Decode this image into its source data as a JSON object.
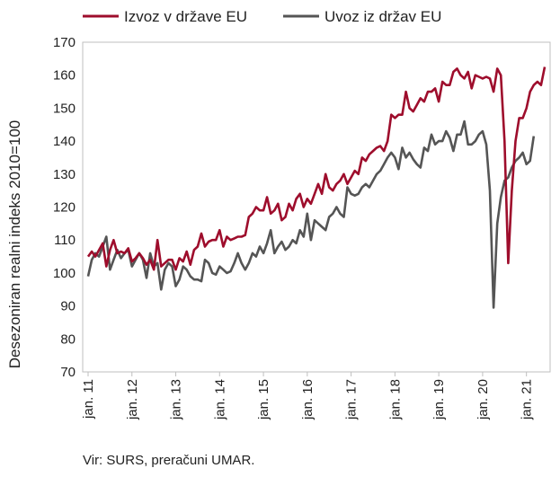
{
  "chart_data": {
    "type": "line",
    "ylabel": "Desezoniran realni indeks 2010=100",
    "ylim": [
      70,
      170
    ],
    "yticks": [
      70,
      80,
      90,
      100,
      110,
      120,
      130,
      140,
      150,
      160,
      170
    ],
    "xticks": [
      "jan. 11",
      "jan. 12",
      "jan. 13",
      "jan. 14",
      "jan. 15",
      "jan. 16",
      "jan. 17",
      "jan. 18",
      "jan. 19",
      "jan. 20",
      "jan. 21"
    ],
    "grid": false,
    "legend_position": "top",
    "start": "2011-01",
    "series": [
      {
        "name": "Izvoz v države EU",
        "color": "#9e0d2c",
        "values": [
          105,
          106.5,
          105,
          107,
          109,
          102,
          107,
          110,
          106,
          106.5,
          106,
          107.5,
          103.5,
          104.5,
          106,
          104.5,
          102.5,
          104,
          101,
          110,
          102,
          103,
          104,
          104,
          101,
          104.5,
          103.5,
          106.5,
          102.5,
          107,
          108,
          112,
          108,
          109.5,
          110,
          110,
          113,
          108,
          111,
          110,
          110.5,
          111,
          111,
          111.5,
          117,
          118,
          120,
          119,
          119,
          123,
          118,
          119,
          121,
          116,
          117,
          121,
          119,
          122.5,
          124,
          120,
          122.5,
          121,
          124,
          127,
          124,
          130,
          126,
          125,
          127,
          128,
          130,
          127,
          129,
          131,
          130,
          135,
          134,
          136,
          137,
          138,
          138.5,
          137,
          140,
          148,
          147,
          148,
          148,
          155,
          150,
          149,
          151,
          153,
          152,
          155,
          155,
          156,
          152,
          158,
          157,
          157,
          161,
          162,
          160,
          159,
          161,
          156,
          160,
          159.5,
          159,
          159.5,
          159,
          155,
          162,
          160,
          140,
          103,
          125,
          140,
          147,
          147,
          150,
          155,
          157,
          158,
          157,
          162.5
        ]
      },
      {
        "name": "Uvoz iz držav EU",
        "color": "#555555",
        "values": [
          99,
          104,
          106,
          105,
          108,
          111,
          101,
          104,
          107,
          104.5,
          106,
          107,
          102,
          104,
          106,
          104,
          98.5,
          106,
          102,
          103,
          95,
          101,
          103,
          102,
          96,
          98,
          102,
          101,
          99,
          98,
          98,
          97.5,
          104,
          103,
          100,
          99.5,
          102,
          101,
          100,
          100.5,
          103,
          106,
          103,
          101,
          103,
          106,
          105,
          108,
          106,
          109,
          113,
          106,
          108,
          109.5,
          107,
          108,
          110,
          109,
          113,
          111,
          118,
          110,
          116,
          115,
          114,
          113,
          117,
          118,
          120,
          118,
          117,
          126,
          124,
          123.5,
          124,
          126,
          127,
          126,
          128,
          130,
          131,
          133,
          135,
          136.5,
          135,
          131.5,
          138,
          135,
          136.5,
          134.5,
          133,
          132,
          138,
          137,
          142,
          139,
          140,
          140,
          143,
          141,
          137,
          142,
          142,
          146,
          139,
          139,
          140,
          142,
          143,
          139,
          125,
          89.5,
          115,
          123,
          128,
          129,
          132,
          134,
          135,
          136.5,
          133,
          134,
          141.5
        ]
      }
    ]
  },
  "source": "Vir: SURS, preračuni UMAR."
}
